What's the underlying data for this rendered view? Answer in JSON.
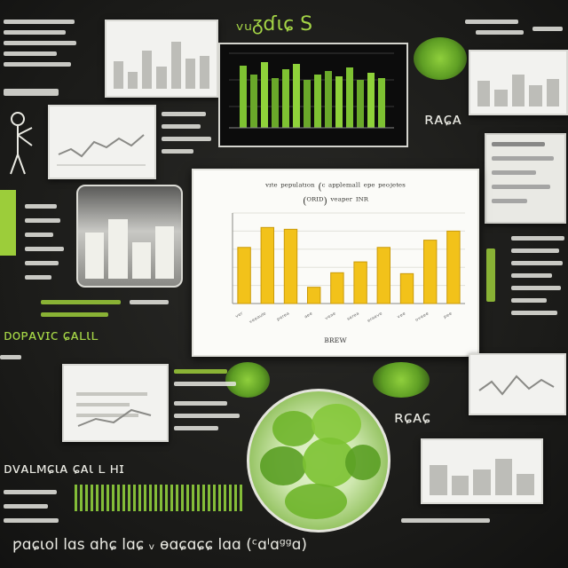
{
  "poster": {
    "header_text": "ᵥᵤᵹɗɩɕ S",
    "footer_text": "ƿɑɕɩol lɑs ɑhɕ lɑɕ ᵥ ɵɑɕɑɕɕ lɑɑ (ᶜɑᴵɑᵍᵍɑ)",
    "left_heading": "ᴅᴏᴩᴀᴠɪᴄ ɕᴀʟɩʟ",
    "bottom_left_heading": "ᴅᴠᴀʟᴍɕɩᴀ ɕᴀɩ ʟ ʜɪ",
    "right_label": "ʀᴀɕᴀ",
    "mid_right_label": "ʀɕᴀɕ"
  },
  "accent_colors": {
    "board": "#1c1c1a",
    "green": "#9ccd3a",
    "bar_yellow": "#f2c21a"
  },
  "chart_data": {
    "type": "bar",
    "title": "ᵛᶦᵗᵉ ᵖᵉᵖᵘˡᵃᵗᶦᵒⁿ (ᶜ ᵃᵖᵖˡᵉᵐᵃˡˡ ᵉᵖᵉ ᵖᵉᵒʲᵉᵗᵉˢ",
    "subtitle": "(ᴼᴿᴵᴰ) ᵛᵉᵃᵖᵉʳ ᴵᴺᴿ",
    "ylabel": "",
    "xlabel": "ʙʀᴇᴡ",
    "categories": [
      "ᵛᵉʳ",
      "ᵛᵉᵉᵃᵘˡᵉ",
      "ᵖᵉʳᵉᵃ",
      "ᵃᵉᵉ",
      "ᵛᵉᵃᵉ",
      "ˢᵉʳᵉᵃ",
      "ᵉʳᵃᵉᵛᵉ",
      "ᵛᵉᵉ",
      "ᵒᵛᵉᵉᵉ",
      "ᵖᵉᵉ"
    ],
    "values": [
      62,
      84,
      82,
      18,
      34,
      46,
      62,
      33,
      70,
      80
    ],
    "ylim": [
      0,
      100
    ],
    "grid": true
  }
}
